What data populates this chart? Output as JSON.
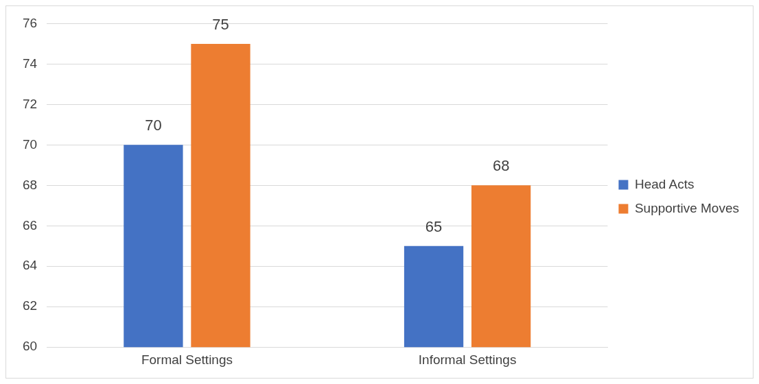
{
  "chart_data": {
    "type": "bar",
    "categories": [
      "Formal Settings",
      "Informal Settings"
    ],
    "series": [
      {
        "name": "Head Acts",
        "color": "#4472c4",
        "values": [
          70,
          65
        ]
      },
      {
        "name": "Supportive Moves",
        "color": "#ed7d31",
        "values": [
          75,
          68
        ]
      }
    ],
    "ylim": [
      60,
      76
    ],
    "yticks": [
      60,
      62,
      64,
      66,
      68,
      70,
      72,
      74,
      76
    ],
    "grid": "y",
    "legend": "right",
    "data_labels": true
  }
}
